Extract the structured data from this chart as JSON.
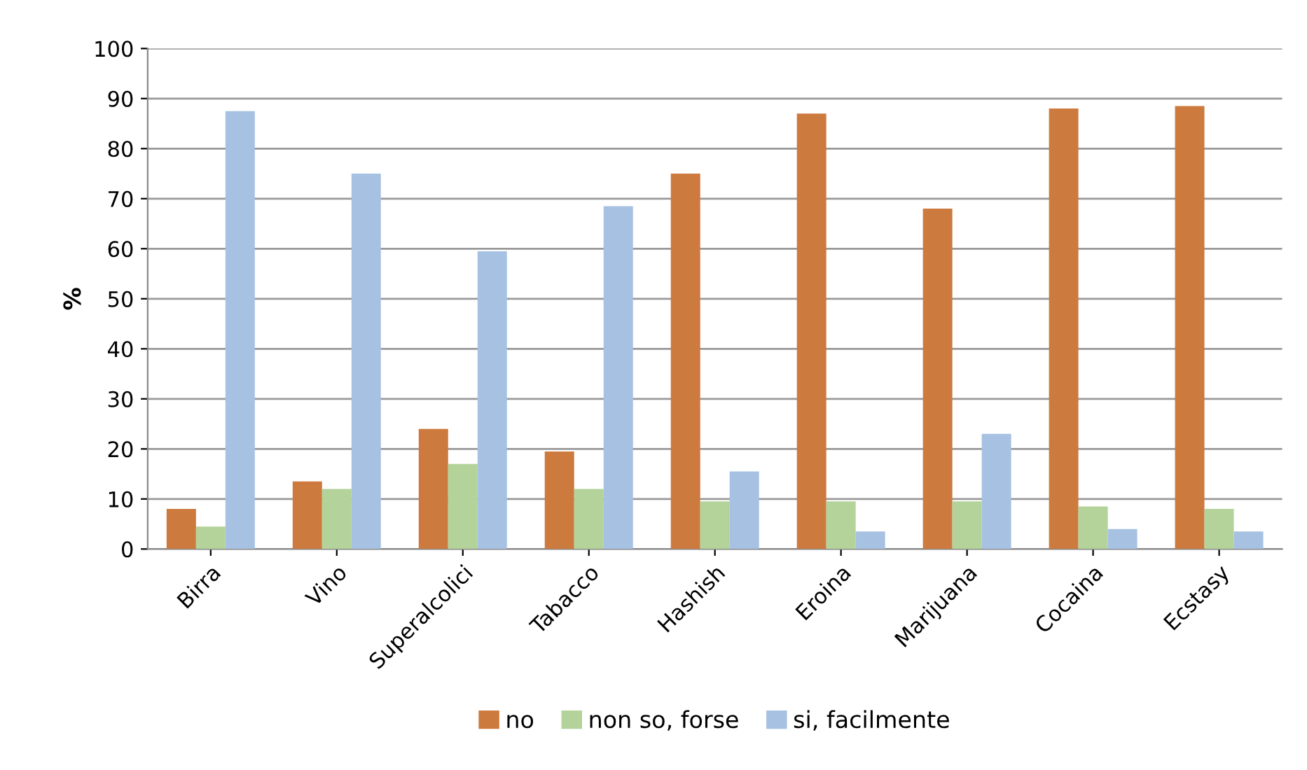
{
  "chart_data": {
    "type": "bar",
    "ylabel": "%",
    "categories": [
      "Birra",
      "Vino",
      "Superalcolici",
      "Tabacco",
      "Hashish",
      "Eroina",
      "Marijuana",
      "Cocaina",
      "Ecstasy"
    ],
    "series": [
      {
        "name": "no",
        "color": "#cd7a3e",
        "values": [
          8,
          13.5,
          24,
          19.5,
          75,
          87,
          68,
          88,
          88.5
        ]
      },
      {
        "name": "non so, forse",
        "color": "#b3d39a",
        "values": [
          4.5,
          12,
          17,
          12,
          9.5,
          9.5,
          9.5,
          8.5,
          8
        ]
      },
      {
        "name": "si, facilmente",
        "color": "#a7c1e2",
        "values": [
          87.5,
          75,
          59.5,
          68.5,
          15.5,
          3.5,
          23,
          4,
          3.5
        ]
      }
    ],
    "ylim": [
      0,
      100
    ],
    "yticks": [
      0,
      10,
      20,
      30,
      40,
      50,
      60,
      70,
      80,
      90,
      100
    ],
    "grid": "y",
    "legend": "bottom"
  }
}
